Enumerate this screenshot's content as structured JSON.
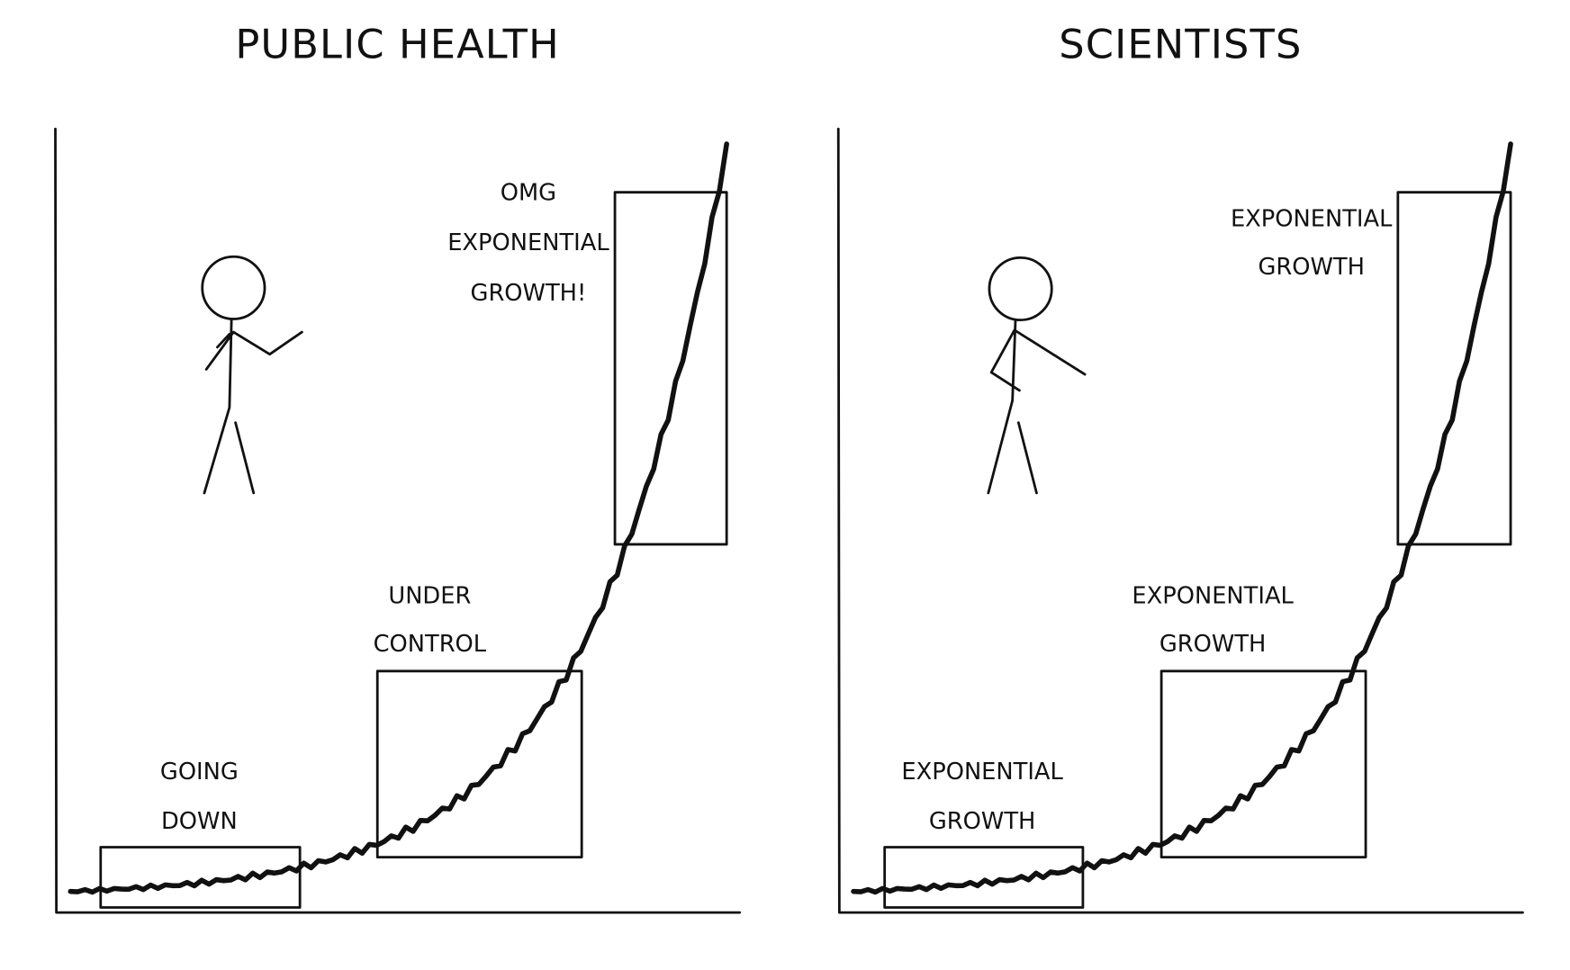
{
  "panels": [
    {
      "title": "PUBLIC HEALTH",
      "labels": [
        [
          "GOING",
          "DOWN"
        ],
        [
          "UNDER",
          "CONTROL"
        ],
        [
          "OMG",
          "EXPONENTIAL",
          "GROWTH!"
        ]
      ]
    },
    {
      "title": "SCIENTISTS",
      "labels": [
        [
          "EXPONENTIAL",
          "GROWTH"
        ],
        [
          "EXPONENTIAL",
          "GROWTH"
        ],
        [
          "EXPONENTIAL",
          "GROWTH"
        ]
      ]
    }
  ]
}
